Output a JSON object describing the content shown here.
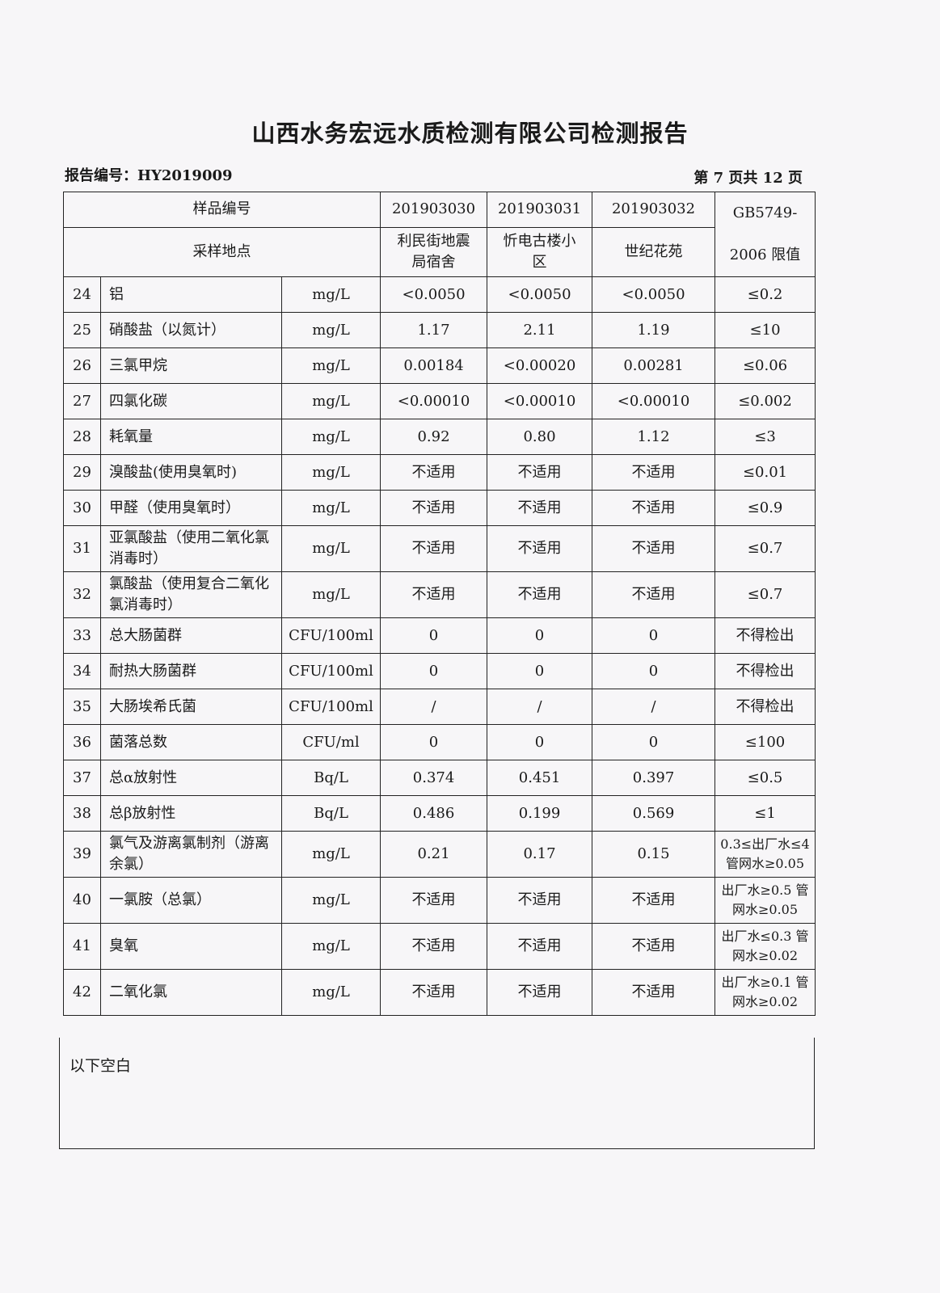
{
  "title": "山西水务宏远水质检测有限公司检测报告",
  "report_no": "报告编号：HY2019009",
  "page_info": "第 7 页共 12 页",
  "header": {
    "sample_no_label": "样品编号",
    "location_label": "采样地点",
    "standard_label": "GB5749-2006 限值",
    "samples": [
      {
        "id": "201903030",
        "location": "利民街地震局宿舍"
      },
      {
        "id": "201903031",
        "location": "忻电古楼小区"
      },
      {
        "id": "201903032",
        "location": "世纪花苑"
      }
    ]
  },
  "rows": [
    {
      "no": "24",
      "item": "铝",
      "unit": "mg/L",
      "v": [
        "<0.0050",
        "<0.0050",
        "<0.0050"
      ],
      "limit": "≤0.2"
    },
    {
      "no": "25",
      "item": "硝酸盐（以氮计）",
      "unit": "mg/L",
      "v": [
        "1.17",
        "2.11",
        "1.19"
      ],
      "limit": "≤10"
    },
    {
      "no": "26",
      "item": "三氯甲烷",
      "unit": "mg/L",
      "v": [
        "0.00184",
        "<0.00020",
        "0.00281"
      ],
      "limit": "≤0.06"
    },
    {
      "no": "27",
      "item": "四氯化碳",
      "unit": "mg/L",
      "v": [
        "<0.00010",
        "<0.00010",
        "<0.00010"
      ],
      "limit": "≤0.002"
    },
    {
      "no": "28",
      "item": "耗氧量",
      "unit": "mg/L",
      "v": [
        "0.92",
        "0.80",
        "1.12"
      ],
      "limit": "≤3"
    },
    {
      "no": "29",
      "item": "溴酸盐(使用臭氧时)",
      "unit": "mg/L",
      "v": [
        "不适用",
        "不适用",
        "不适用"
      ],
      "limit": "≤0.01"
    },
    {
      "no": "30",
      "item": "甲醛（使用臭氧时）",
      "unit": "mg/L",
      "v": [
        "不适用",
        "不适用",
        "不适用"
      ],
      "limit": "≤0.9"
    },
    {
      "no": "31",
      "item": "亚氯酸盐（使用二氧化氯消毒时）",
      "unit": "mg/L",
      "v": [
        "不适用",
        "不适用",
        "不适用"
      ],
      "limit": "≤0.7",
      "tall": true
    },
    {
      "no": "32",
      "item": "氯酸盐（使用复合二氧化氯消毒时）",
      "unit": "mg/L",
      "v": [
        "不适用",
        "不适用",
        "不适用"
      ],
      "limit": "≤0.7",
      "tall": true
    },
    {
      "no": "33",
      "item": "总大肠菌群",
      "unit": "CFU/100ml",
      "v": [
        "0",
        "0",
        "0"
      ],
      "limit": "不得检出"
    },
    {
      "no": "34",
      "item": "耐热大肠菌群",
      "unit": "CFU/100ml",
      "v": [
        "0",
        "0",
        "0"
      ],
      "limit": "不得检出"
    },
    {
      "no": "35",
      "item": "大肠埃希氏菌",
      "unit": "CFU/100ml",
      "v": [
        "/",
        "/",
        "/"
      ],
      "limit": "不得检出"
    },
    {
      "no": "36",
      "item": "菌落总数",
      "unit": "CFU/ml",
      "v": [
        "0",
        "0",
        "0"
      ],
      "limit": "≤100"
    },
    {
      "no": "37",
      "item": "总α放射性",
      "unit": "Bq/L",
      "v": [
        "0.374",
        "0.451",
        "0.397"
      ],
      "limit": "≤0.5"
    },
    {
      "no": "38",
      "item": "总β放射性",
      "unit": "Bq/L",
      "v": [
        "0.486",
        "0.199",
        "0.569"
      ],
      "limit": "≤1"
    },
    {
      "no": "39",
      "item": "氯气及游离氯制剂（游离余氯）",
      "unit": "mg/L",
      "v": [
        "0.21",
        "0.17",
        "0.15"
      ],
      "limit": "0.3≤出厂水≤4 管网水≥0.05",
      "tall": true
    },
    {
      "no": "40",
      "item": "一氯胺（总氯）",
      "unit": "mg/L",
      "v": [
        "不适用",
        "不适用",
        "不适用"
      ],
      "limit": "出厂水≥0.5 管网水≥0.05",
      "tall": true
    },
    {
      "no": "41",
      "item": "臭氧",
      "unit": "mg/L",
      "v": [
        "不适用",
        "不适用",
        "不适用"
      ],
      "limit": "出厂水≤0.3 管网水≥0.02",
      "tall": true
    },
    {
      "no": "42",
      "item": "二氧化氯",
      "unit": "mg/L",
      "v": [
        "不适用",
        "不适用",
        "不适用"
      ],
      "limit": "出厂水≥0.1 管网水≥0.02",
      "tall": true
    }
  ],
  "remark": "以下空白"
}
